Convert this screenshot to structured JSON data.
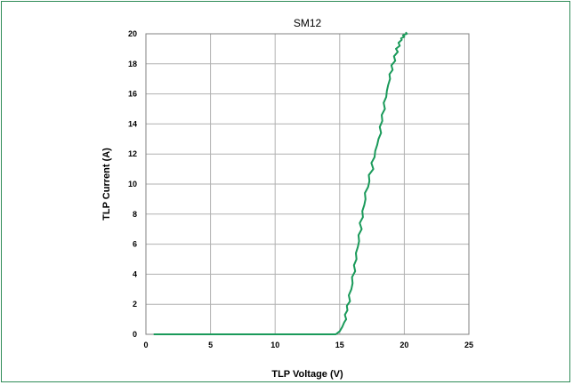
{
  "chart_data": {
    "type": "line",
    "title": "SM12",
    "xlabel": "TLP Voltage (V)",
    "ylabel": "TLP Current (A)",
    "xlim": [
      0,
      25
    ],
    "ylim": [
      0,
      20
    ],
    "xticks": [
      0,
      5,
      10,
      15,
      20,
      25
    ],
    "yticks": [
      0,
      2,
      4,
      6,
      8,
      10,
      12,
      14,
      16,
      18,
      20
    ],
    "grid": true,
    "legend": "none",
    "colors": {
      "series": "#1a9a5a",
      "frame": "#2e8b57",
      "grid": "#b0b0b0"
    },
    "series": [
      {
        "x": [
          0.6,
          5,
          10,
          14.7,
          15.0,
          15.2,
          15.35,
          15.5,
          15.4,
          15.6,
          15.55,
          15.8,
          15.7,
          15.9,
          16.0,
          15.95,
          16.2,
          16.1,
          16.3,
          16.25,
          16.4,
          16.5,
          16.45,
          16.7,
          16.55,
          16.8,
          16.75,
          16.9,
          17.0,
          16.95,
          17.2,
          17.3,
          17.25,
          17.6,
          17.45,
          17.7,
          17.75,
          17.9,
          18.0,
          18.2,
          18.1,
          18.3,
          18.25,
          18.5,
          18.4,
          18.6,
          18.65,
          18.75,
          18.9,
          18.85,
          19.1,
          19.0,
          19.3,
          19.2,
          19.5,
          19.35,
          19.65,
          19.55,
          19.8,
          19.75,
          20.0,
          19.9,
          20.2,
          20.1
        ],
        "y": [
          0,
          0,
          0,
          0,
          0.2,
          0.5,
          0.8,
          1.0,
          1.3,
          1.6,
          1.9,
          2.2,
          2.6,
          3.0,
          3.4,
          3.8,
          4.2,
          4.6,
          5.0,
          5.4,
          5.8,
          6.2,
          6.6,
          7.0,
          7.4,
          7.8,
          8.2,
          8.6,
          9.0,
          9.4,
          9.8,
          10.2,
          10.6,
          11.0,
          11.4,
          11.8,
          12.2,
          12.6,
          13.0,
          13.4,
          13.8,
          14.2,
          14.6,
          15.0,
          15.4,
          15.8,
          16.2,
          16.6,
          17.0,
          17.3,
          17.6,
          17.9,
          18.2,
          18.5,
          18.8,
          19.0,
          19.2,
          19.4,
          19.6,
          19.7,
          19.8,
          19.9,
          20.0,
          20.1
        ]
      }
    ]
  }
}
